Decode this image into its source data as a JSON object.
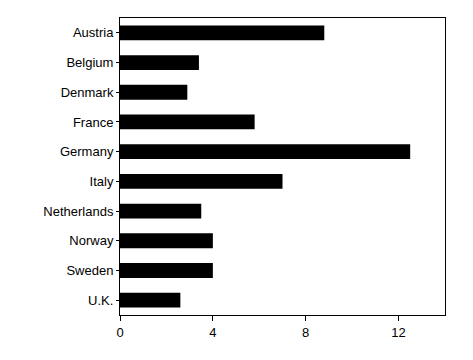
{
  "chart_data": {
    "type": "bar",
    "orientation": "horizontal",
    "categories": [
      "Austria",
      "Belgium",
      "Denmark",
      "France",
      "Germany",
      "Italy",
      "Netherlands",
      "Norway",
      "Sweden",
      "U.K."
    ],
    "values": [
      8.8,
      3.4,
      2.9,
      5.8,
      12.5,
      7.0,
      3.5,
      4.0,
      4.0,
      2.6
    ],
    "color": "#000000",
    "xlim": [
      0,
      14
    ],
    "xticks": [
      0,
      4,
      8,
      12
    ],
    "grid": false
  }
}
